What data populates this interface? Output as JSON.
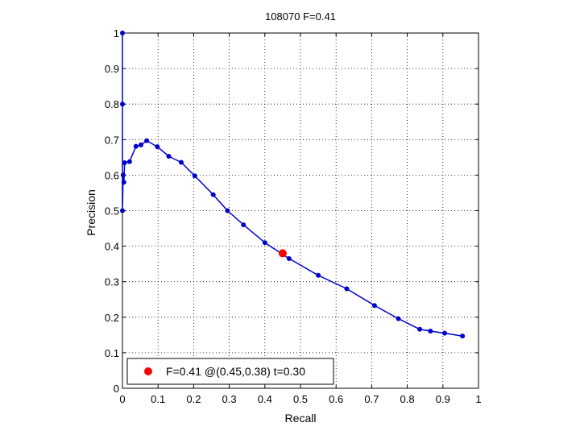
{
  "chart_data": {
    "type": "line",
    "title": "108070 F=0.41",
    "xlabel": "Recall",
    "ylabel": "Precision",
    "xlim": [
      0,
      1
    ],
    "ylim": [
      0,
      1
    ],
    "grid": true,
    "xticks": [
      "0",
      "0.1",
      "0.2",
      "0.3",
      "0.4",
      "0.5",
      "0.6",
      "0.7",
      "0.8",
      "0.9",
      "1"
    ],
    "yticks": [
      "0",
      "0.1",
      "0.2",
      "0.3",
      "0.4",
      "0.5",
      "0.6",
      "0.7",
      "0.8",
      "0.9",
      "1"
    ],
    "series": [
      {
        "color": "#0000cc",
        "x": [
          0,
          0,
          0,
          0.002,
          0.004,
          0.006,
          0.02,
          0.038,
          0.052,
          0.068,
          0.098,
          0.13,
          0.165,
          0.203,
          0.255,
          0.295,
          0.34,
          0.4,
          0.468,
          0.55,
          0.63,
          0.708,
          0.775,
          0.835,
          0.865,
          0.905,
          0.955
        ],
        "y": [
          1,
          0.8,
          0.5,
          0.6,
          0.58,
          0.635,
          0.638,
          0.681,
          0.685,
          0.697,
          0.68,
          0.653,
          0.636,
          0.598,
          0.545,
          0.5,
          0.46,
          0.41,
          0.365,
          0.318,
          0.28,
          0.233,
          0.196,
          0.166,
          0.161,
          0.155,
          0.147
        ]
      }
    ],
    "highlight_point": {
      "x": 0.45,
      "y": 0.38,
      "color": "#ff0000"
    },
    "legend": {
      "label": "F=0.41 @(0.45,0.38) t=0.30",
      "position": "bottom-left"
    }
  }
}
